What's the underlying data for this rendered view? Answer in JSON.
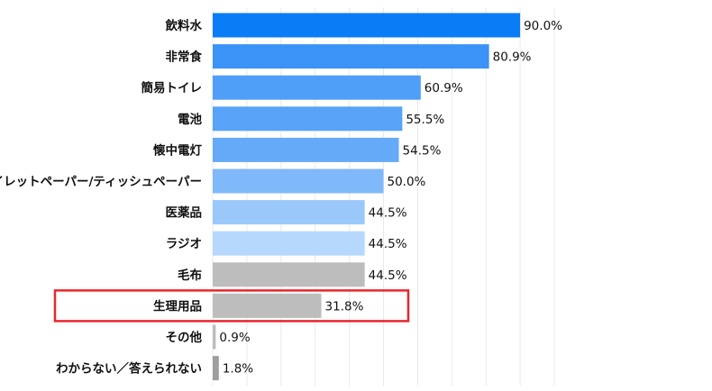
{
  "chart_data": {
    "type": "bar",
    "orientation": "horizontal",
    "categories": [
      "飲料水",
      "非常食",
      "簡易トイレ",
      "電池",
      "懐中電灯",
      "トイレットペーパー/ティッシュペーパー",
      "医薬品",
      "ラジオ",
      "毛布",
      "生理用品",
      "その他",
      "わからない／答えられない"
    ],
    "values": [
      90.0,
      80.9,
      60.9,
      55.5,
      54.5,
      50.0,
      44.5,
      44.5,
      44.5,
      31.8,
      0.9,
      1.8
    ],
    "value_labels": [
      "90.0%",
      "80.9%",
      "60.9%",
      "55.5%",
      "54.5%",
      "50.0%",
      "44.5%",
      "44.5%",
      "44.5%",
      "31.8%",
      "0.9%",
      "1.8%"
    ],
    "colors": [
      "#0a7cf5",
      "#3b93f7",
      "#4f9ef8",
      "#58a3f8",
      "#65aaf9",
      "#80b9fa",
      "#9ac8fb",
      "#b6d8fc",
      "#bdbdbd",
      "#bdbdbd",
      "#bdbdbd",
      "#9e9e9e"
    ],
    "highlight": {
      "category": "生理用品",
      "color": "#e8262d"
    },
    "grid_color": "#e4eaf2",
    "xlim": [
      0,
      100
    ],
    "grid": true,
    "legend": "none",
    "title": "",
    "xlabel": "",
    "ylabel": ""
  }
}
